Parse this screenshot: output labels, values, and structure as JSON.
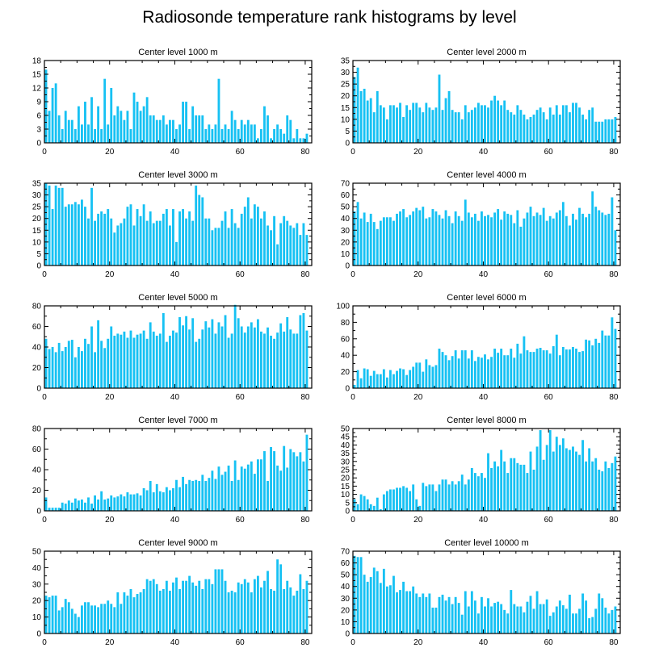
{
  "figure_title": "Radiosonde temperature rank histograms by level",
  "bar_color": "#16c1f3",
  "axis_color": "#000000",
  "chart_data": [
    {
      "type": "bar",
      "title": "Center level 1000 m",
      "xlim": [
        0,
        82
      ],
      "ylim": [
        0,
        18
      ],
      "xticks": [
        0,
        20,
        40,
        60,
        80
      ],
      "yticks": [
        0,
        3,
        6,
        9,
        12,
        15,
        18
      ],
      "values": [
        16,
        7,
        12,
        13,
        6,
        3,
        7,
        5,
        5,
        3,
        8,
        4,
        9,
        4,
        10,
        3,
        8,
        3,
        14,
        4,
        12,
        6,
        8,
        7,
        5,
        7,
        3,
        11,
        9,
        7,
        8,
        10,
        6,
        6,
        5,
        5,
        6,
        4,
        5,
        5,
        3,
        4,
        9,
        9,
        3,
        8,
        6,
        6,
        6,
        3,
        4,
        3,
        4,
        14,
        3,
        4,
        3,
        7,
        5,
        3,
        5,
        4,
        5,
        4,
        4,
        1,
        3,
        8,
        6,
        1,
        3,
        4,
        3,
        2,
        6,
        5,
        1,
        3,
        1,
        1,
        2
      ]
    },
    {
      "type": "bar",
      "title": "Center level 2000 m",
      "xlim": [
        0,
        82
      ],
      "ylim": [
        0,
        35
      ],
      "xticks": [
        0,
        20,
        40,
        60,
        80
      ],
      "yticks": [
        0,
        5,
        10,
        15,
        20,
        25,
        30,
        35
      ],
      "values": [
        28,
        32,
        22,
        23,
        18,
        19,
        13,
        22,
        16,
        15,
        10,
        16,
        16,
        15,
        17,
        11,
        16,
        14,
        17,
        17,
        15,
        13,
        17,
        15,
        14,
        15,
        29,
        14,
        19,
        22,
        14,
        13,
        13,
        10,
        16,
        13,
        14,
        15,
        17,
        16,
        16,
        15,
        18,
        20,
        18,
        16,
        18,
        14,
        13,
        12,
        16,
        14,
        12,
        10,
        11,
        12,
        14,
        15,
        13,
        10,
        15,
        12,
        16,
        12,
        16,
        16,
        13,
        17,
        17,
        15,
        12,
        10,
        14,
        15,
        9,
        9,
        9,
        10,
        10,
        10,
        11
      ]
    },
    {
      "type": "bar",
      "title": "Center level 3000 m",
      "xlim": [
        0,
        82
      ],
      "ylim": [
        0,
        35
      ],
      "xticks": [
        0,
        20,
        40,
        60,
        80
      ],
      "yticks": [
        0,
        5,
        10,
        15,
        20,
        25,
        30,
        35
      ],
      "values": [
        35,
        34,
        24,
        34,
        33,
        33,
        25,
        26,
        26,
        27,
        26,
        28,
        25,
        20,
        33,
        19,
        22,
        23,
        22,
        24,
        20,
        14,
        17,
        18,
        20,
        25,
        26,
        17,
        24,
        21,
        26,
        19,
        23,
        18,
        19,
        19,
        22,
        24,
        17,
        24,
        10,
        23,
        24,
        20,
        23,
        19,
        34,
        30,
        29,
        20,
        20,
        15,
        16,
        16,
        19,
        23,
        16,
        24,
        18,
        16,
        22,
        25,
        29,
        20,
        26,
        25,
        20,
        23,
        17,
        15,
        21,
        9,
        18,
        21,
        19,
        17,
        16,
        18,
        13,
        18,
        13
      ]
    },
    {
      "type": "bar",
      "title": "Center level 4000 m",
      "xlim": [
        0,
        82
      ],
      "ylim": [
        0,
        70
      ],
      "xticks": [
        0,
        20,
        40,
        60,
        80
      ],
      "yticks": [
        0,
        10,
        20,
        30,
        40,
        50,
        60,
        70
      ],
      "values": [
        46,
        54,
        40,
        45,
        37,
        44,
        37,
        31,
        38,
        41,
        41,
        41,
        38,
        44,
        46,
        48,
        41,
        43,
        46,
        49,
        47,
        50,
        40,
        41,
        48,
        46,
        43,
        40,
        47,
        42,
        36,
        46,
        42,
        38,
        56,
        45,
        41,
        44,
        38,
        46,
        42,
        43,
        41,
        45,
        48,
        39,
        46,
        44,
        43,
        36,
        47,
        33,
        40,
        45,
        50,
        42,
        45,
        43,
        49,
        38,
        42,
        40,
        45,
        47,
        54,
        42,
        34,
        44,
        39,
        49,
        44,
        41,
        44,
        63,
        50,
        47,
        45,
        43,
        44,
        58,
        30
      ]
    },
    {
      "type": "bar",
      "title": "Center level 5000 m",
      "xlim": [
        0,
        82
      ],
      "ylim": [
        0,
        80
      ],
      "xticks": [
        0,
        20,
        40,
        60,
        80
      ],
      "yticks": [
        0,
        20,
        40,
        60,
        80
      ],
      "values": [
        48,
        38,
        40,
        35,
        44,
        36,
        40,
        46,
        47,
        30,
        40,
        36,
        48,
        43,
        60,
        35,
        66,
        46,
        39,
        48,
        60,
        51,
        53,
        52,
        55,
        49,
        56,
        49,
        52,
        53,
        56,
        48,
        64,
        55,
        51,
        53,
        73,
        45,
        51,
        56,
        54,
        69,
        61,
        70,
        57,
        68,
        45,
        48,
        57,
        65,
        59,
        67,
        53,
        64,
        60,
        71,
        49,
        53,
        81,
        68,
        60,
        54,
        60,
        64,
        59,
        67,
        55,
        53,
        59,
        51,
        48,
        54,
        63,
        55,
        69,
        57,
        53,
        53,
        71,
        73,
        56
      ]
    },
    {
      "type": "bar",
      "title": "Center level 6000 m",
      "xlim": [
        0,
        82
      ],
      "ylim": [
        0,
        100
      ],
      "xticks": [
        0,
        20,
        40,
        60,
        80
      ],
      "yticks": [
        0,
        20,
        40,
        60,
        80,
        100
      ],
      "values": [
        4,
        22,
        12,
        24,
        23,
        15,
        21,
        17,
        17,
        23,
        13,
        22,
        17,
        21,
        24,
        23,
        16,
        22,
        26,
        31,
        31,
        20,
        35,
        28,
        26,
        28,
        48,
        44,
        40,
        34,
        39,
        46,
        36,
        46,
        46,
        36,
        46,
        33,
        38,
        37,
        41,
        35,
        38,
        48,
        43,
        48,
        40,
        40,
        48,
        37,
        54,
        42,
        63,
        46,
        44,
        44,
        48,
        49,
        46,
        46,
        42,
        51,
        65,
        40,
        50,
        47,
        47,
        50,
        48,
        44,
        45,
        59,
        58,
        52,
        60,
        55,
        70,
        64,
        64,
        86,
        72
      ]
    },
    {
      "type": "bar",
      "title": "Center level 7000 m",
      "xlim": [
        0,
        82
      ],
      "ylim": [
        0,
        80
      ],
      "xticks": [
        0,
        20,
        40,
        60,
        80
      ],
      "yticks": [
        0,
        20,
        40,
        60,
        80
      ],
      "values": [
        13,
        3,
        3,
        3,
        3,
        8,
        7,
        10,
        8,
        12,
        10,
        11,
        8,
        13,
        7,
        15,
        11,
        19,
        11,
        12,
        15,
        13,
        14,
        16,
        14,
        18,
        16,
        16,
        17,
        15,
        22,
        20,
        29,
        18,
        26,
        19,
        18,
        23,
        20,
        22,
        30,
        23,
        33,
        26,
        30,
        29,
        30,
        29,
        35,
        29,
        32,
        39,
        31,
        43,
        35,
        38,
        44,
        29,
        49,
        30,
        43,
        41,
        45,
        48,
        36,
        50,
        50,
        58,
        29,
        62,
        58,
        44,
        39,
        63,
        42,
        60,
        57,
        53,
        57,
        48,
        74
      ]
    },
    {
      "type": "bar",
      "title": "Center level 8000 m",
      "xlim": [
        0,
        82
      ],
      "ylim": [
        0,
        50
      ],
      "xticks": [
        0,
        20,
        40,
        60,
        80
      ],
      "yticks": [
        0,
        5,
        10,
        15,
        20,
        25,
        30,
        35,
        40,
        45,
        50
      ],
      "values": [
        7,
        4,
        10,
        9,
        7,
        4,
        3,
        8,
        1,
        10,
        12,
        13,
        13,
        14,
        14,
        15,
        14,
        12,
        16,
        7,
        3,
        17,
        15,
        16,
        16,
        12,
        16,
        19,
        19,
        16,
        18,
        16,
        18,
        22,
        16,
        19,
        26,
        23,
        21,
        23,
        20,
        35,
        26,
        30,
        27,
        37,
        30,
        23,
        32,
        32,
        29,
        28,
        28,
        23,
        36,
        25,
        39,
        49,
        31,
        40,
        49,
        36,
        45,
        40,
        44,
        38,
        37,
        39,
        36,
        34,
        43,
        30,
        38,
        30,
        32,
        25,
        24,
        30,
        26,
        29,
        33
      ]
    },
    {
      "type": "bar",
      "title": "Center level 9000 m",
      "xlim": [
        0,
        82
      ],
      "ylim": [
        0,
        50
      ],
      "xticks": [
        0,
        20,
        40,
        60,
        80
      ],
      "yticks": [
        0,
        10,
        20,
        30,
        40,
        50
      ],
      "values": [
        23,
        22,
        23,
        23,
        14,
        16,
        21,
        19,
        15,
        12,
        10,
        17,
        19,
        19,
        17,
        17,
        16,
        18,
        18,
        20,
        18,
        16,
        25,
        18,
        25,
        23,
        27,
        22,
        24,
        25,
        27,
        33,
        32,
        33,
        30,
        26,
        27,
        32,
        26,
        31,
        34,
        27,
        32,
        32,
        35,
        31,
        29,
        32,
        27,
        33,
        33,
        30,
        39,
        39,
        39,
        32,
        25,
        26,
        25,
        31,
        30,
        33,
        31,
        25,
        33,
        35,
        28,
        32,
        38,
        27,
        26,
        45,
        42,
        27,
        32,
        28,
        23,
        26,
        36,
        27,
        32
      ]
    },
    {
      "type": "bar",
      "title": "Center level 10000 m",
      "xlim": [
        0,
        82
      ],
      "ylim": [
        0,
        70
      ],
      "xticks": [
        0,
        20,
        40,
        60,
        80
      ],
      "yticks": [
        0,
        10,
        20,
        30,
        40,
        50,
        60,
        70
      ],
      "values": [
        66,
        65,
        65,
        50,
        44,
        48,
        56,
        53,
        43,
        55,
        40,
        41,
        49,
        35,
        37,
        44,
        36,
        36,
        40,
        34,
        31,
        34,
        31,
        34,
        22,
        22,
        31,
        33,
        28,
        31,
        25,
        31,
        26,
        16,
        36,
        23,
        36,
        28,
        17,
        31,
        23,
        30,
        23,
        26,
        27,
        25,
        20,
        17,
        37,
        25,
        23,
        23,
        18,
        27,
        32,
        21,
        36,
        25,
        25,
        29,
        15,
        18,
        23,
        28,
        24,
        21,
        33,
        17,
        17,
        21,
        34,
        28,
        13,
        14,
        21,
        34,
        30,
        22,
        17,
        20,
        23
      ]
    }
  ]
}
